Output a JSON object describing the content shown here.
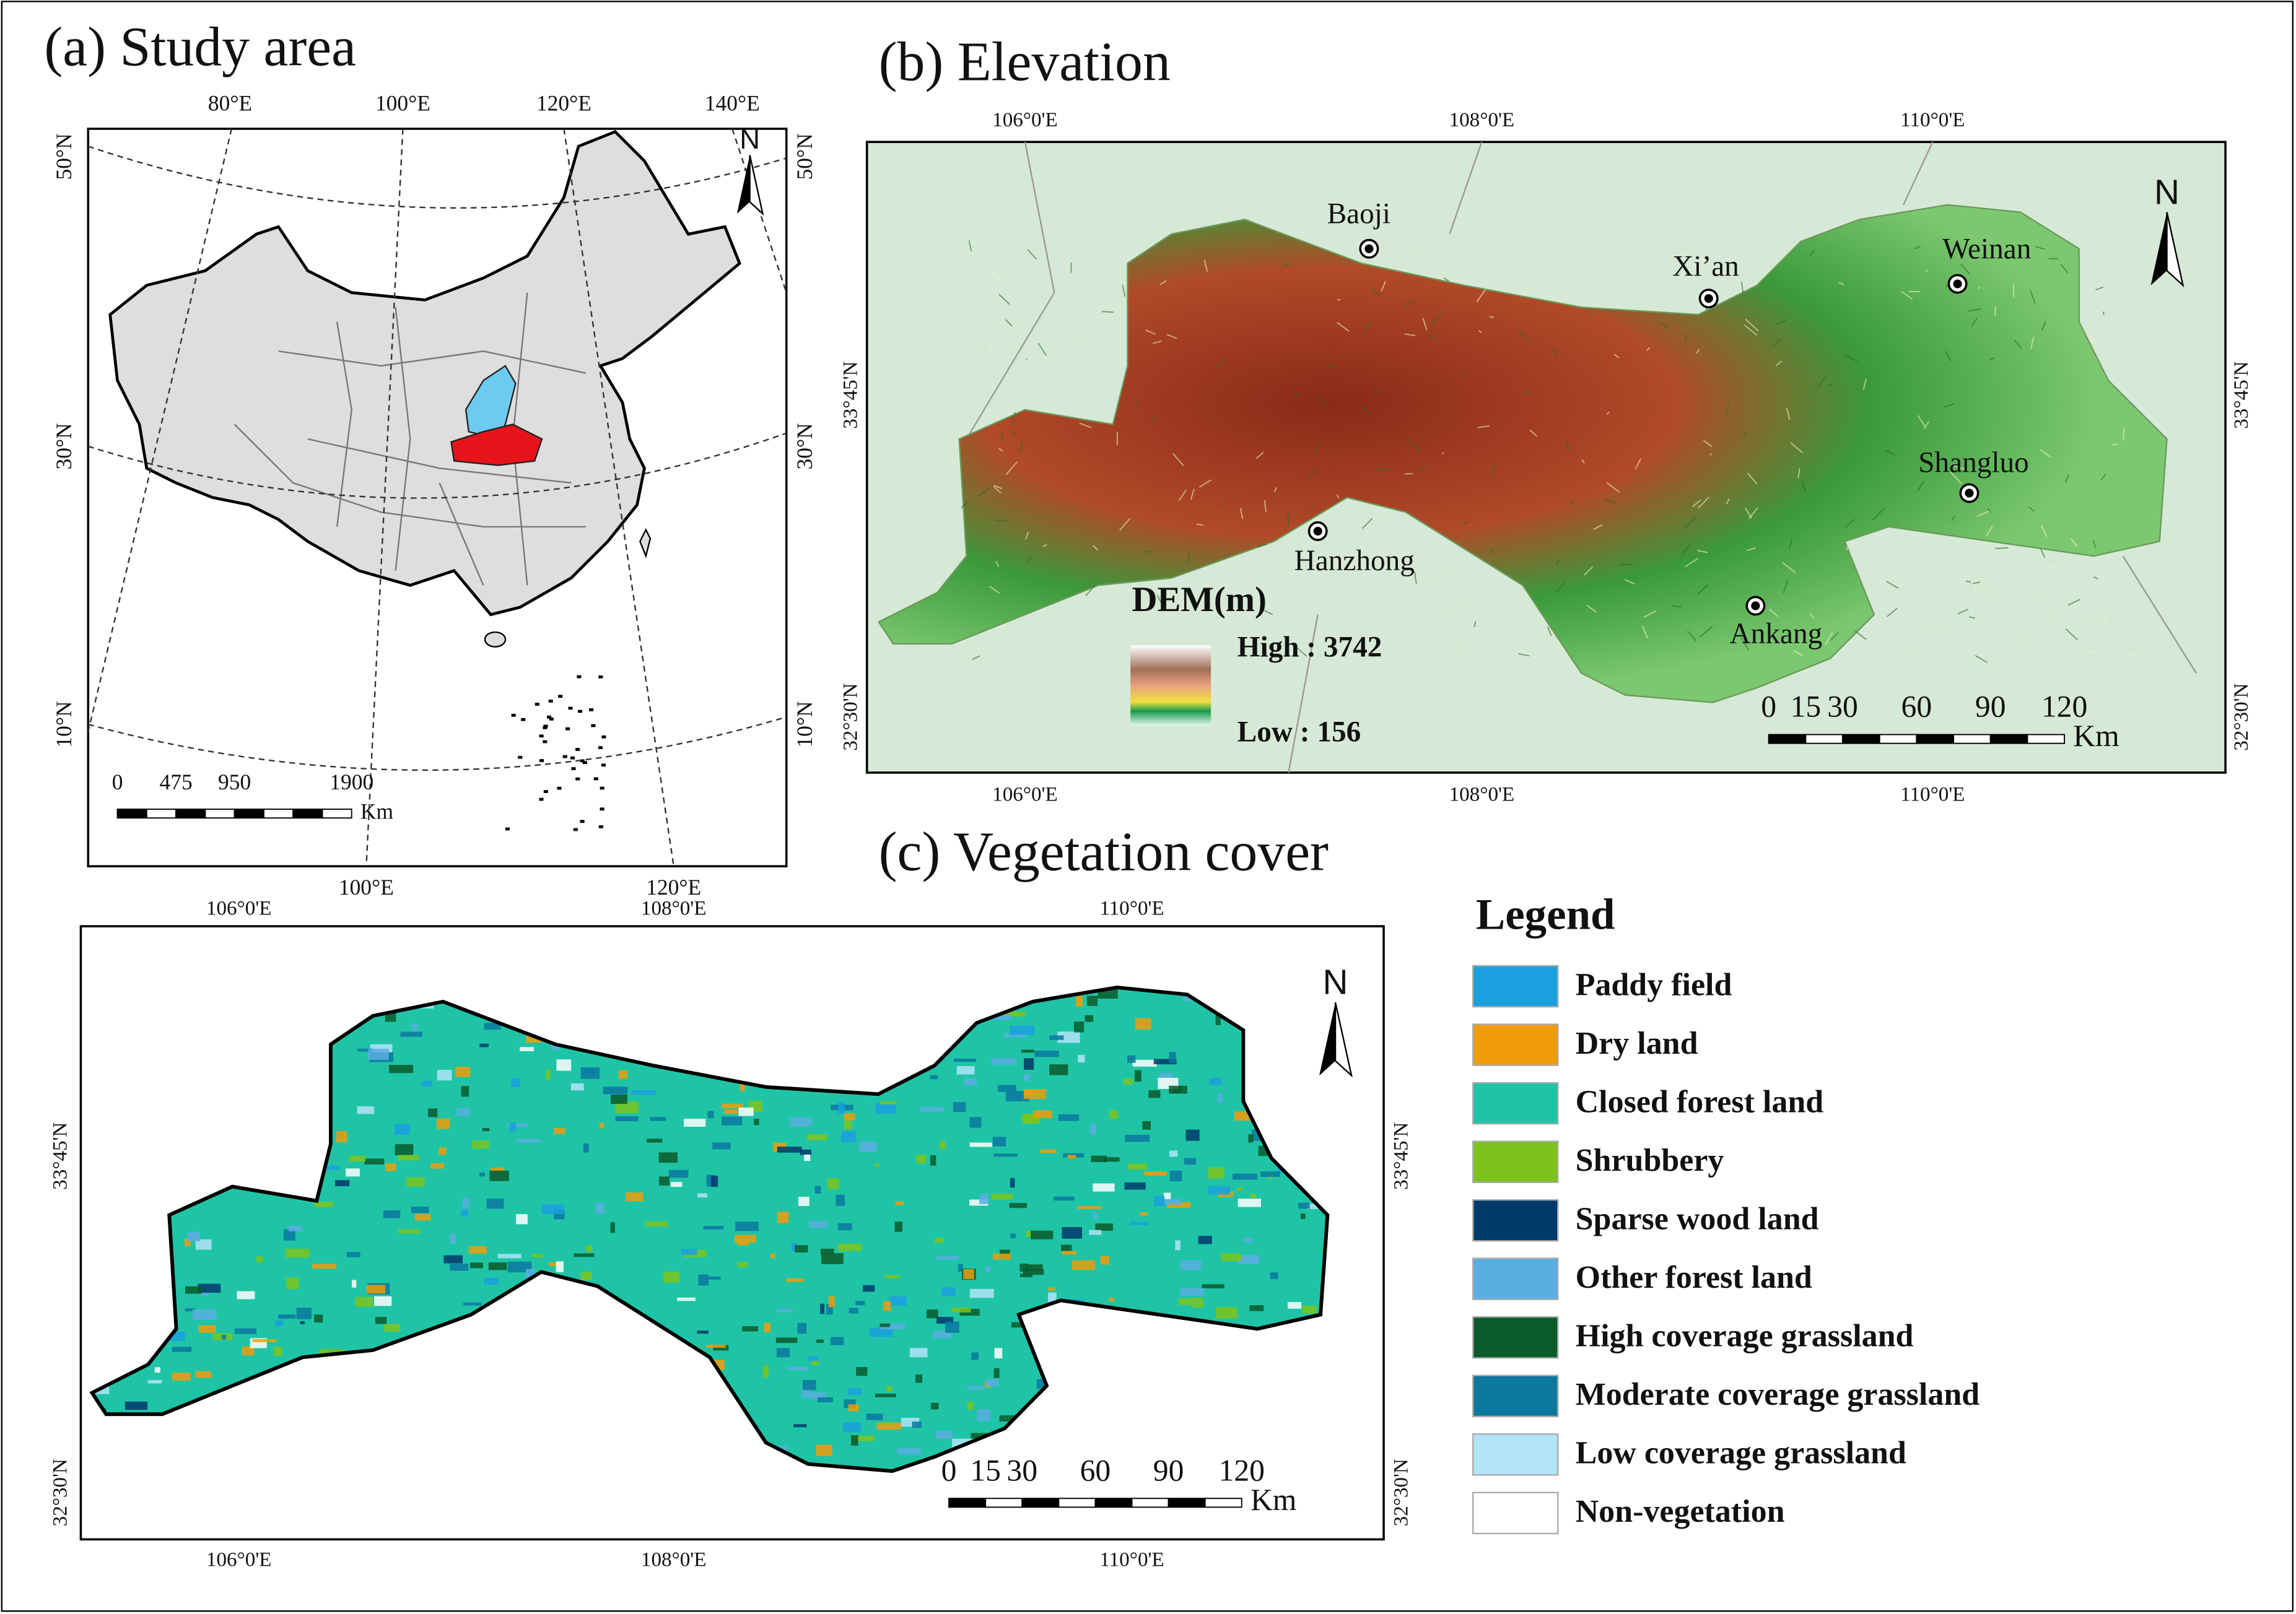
{
  "study_area": {
    "title": "(a) Study area",
    "lon_top": [
      "80°E",
      "100°E",
      "120°E",
      "140°E"
    ],
    "lon_bottom": [
      "100°E",
      "120°E"
    ],
    "lat_left": [
      "50°N",
      "30°N",
      "10°N"
    ],
    "lat_right": [
      "50°N",
      "30°N",
      "10°N"
    ],
    "north": "N",
    "scale": [
      0,
      475,
      950,
      1900
    ],
    "unit": "Km"
  },
  "elevation": {
    "title": "(b) Elevation",
    "lon_top": [
      "106°0'E",
      "108°0'E",
      "110°0'E"
    ],
    "lon_bottom": [
      "106°0'E",
      "108°0'E",
      "110°0'E"
    ],
    "lat_left": [
      "33°45'N",
      "32°30'N"
    ],
    "lat_right": [
      "33°45'N",
      "32°30'N"
    ],
    "north": "N",
    "cities": [
      "Baoji",
      "Xi’an",
      "Weinan",
      "Shangluo",
      "Hanzhong",
      "Ankang"
    ],
    "dem_title": "DEM(m)",
    "dem_high": "High : 3742",
    "dem_low": "Low : 156",
    "scale": [
      0,
      15,
      30,
      60,
      90,
      120
    ],
    "unit": "Km"
  },
  "vegetation": {
    "title": "(c) Vegetation cover",
    "lon_top": [
      "106°0'E",
      "108°0'E",
      "110°0'E"
    ],
    "lon_bottom": [
      "106°0'E",
      "108°0'E",
      "110°0'E"
    ],
    "lat_left": [
      "33°45'N",
      "32°30'N"
    ],
    "lat_right": [
      "33°45'N",
      "32°30'N"
    ],
    "north": "N",
    "scale": [
      0,
      15,
      30,
      60,
      90,
      120
    ],
    "unit": "Km"
  },
  "legend": {
    "title": "Legend",
    "items": [
      {
        "label": "Paddy field",
        "color": "#1aa0de"
      },
      {
        "label": "Dry land",
        "color": "#f09c0a"
      },
      {
        "label": "Closed forest land",
        "color": "#1fc4a6"
      },
      {
        "label": "Shrubbery",
        "color": "#7cc41c"
      },
      {
        "label": "Sparse wood land",
        "color": "#003a6c"
      },
      {
        "label": "Other forest land",
        "color": "#5aaee0"
      },
      {
        "label": "High coverage grassland",
        "color": "#0b5a2a"
      },
      {
        "label": "Moderate coverage grassland",
        "color": "#0b78a0"
      },
      {
        "label": "Low coverage grassland",
        "color": "#b2e4f8"
      },
      {
        "label": "Non-vegetation",
        "color": "#ffffff"
      }
    ]
  }
}
